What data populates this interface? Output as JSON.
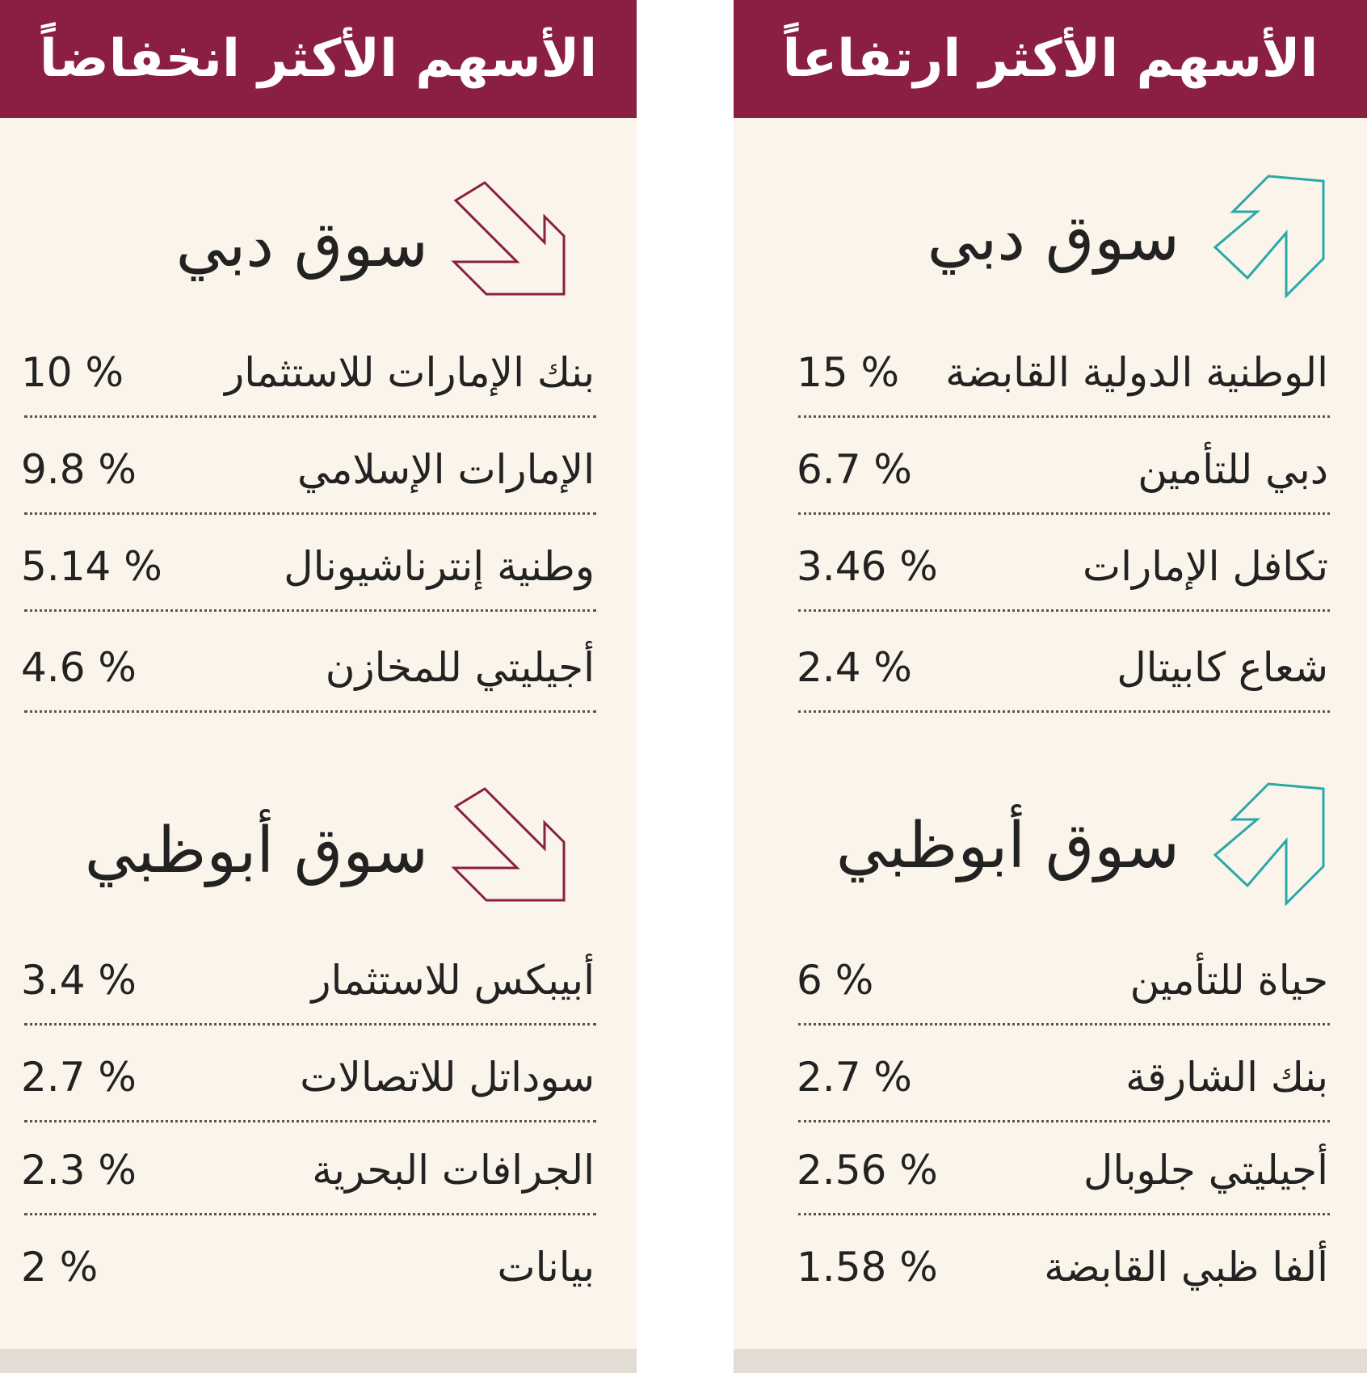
{
  "colors": {
    "header": "#8a1f41",
    "up_arrow": "#2aa7a9",
    "down_arrow": "#8a1f41",
    "background": "#faf4ea"
  },
  "gainers": {
    "title": "الأسهم الأكثر ارتفاعاً",
    "dubai": {
      "market": "سوق دبي",
      "icon": "arrow-up-right-icon",
      "rows": [
        {
          "name": "الوطنية الدولية القابضة",
          "value": "15 %"
        },
        {
          "name": "دبي للتأمين",
          "value": "6.7 %"
        },
        {
          "name": "تكافل الإمارات",
          "value": "3.46 %"
        },
        {
          "name": "شعاع كابيتال",
          "value": "2.4 %"
        }
      ]
    },
    "abudhabi": {
      "market": "سوق أبوظبي",
      "icon": "arrow-up-right-icon",
      "rows": [
        {
          "name": "حياة للتأمين",
          "value": "6 %"
        },
        {
          "name": "بنك الشارقة",
          "value": "2.7 %"
        },
        {
          "name": "أجيليتي جلوبال",
          "value": "2.56 %"
        },
        {
          "name": "ألفا ظبي القابضة",
          "value": "1.58 %"
        }
      ]
    }
  },
  "losers": {
    "title": "الأسهم الأكثر انخفاضاً",
    "dubai": {
      "market": "سوق دبي",
      "icon": "arrow-down-right-icon",
      "rows": [
        {
          "name": "بنك الإمارات للاستثمار",
          "value": "10 %"
        },
        {
          "name": "الإمارات الإسلامي",
          "value": "9.8 %"
        },
        {
          "name": "وطنية إنترناشيونال",
          "value": "5.14 %"
        },
        {
          "name": "أجيليتي للمخازن",
          "value": "4.6 %"
        }
      ]
    },
    "abudhabi": {
      "market": "سوق أبوظبي",
      "icon": "arrow-down-right-icon",
      "rows": [
        {
          "name": "أبيبكس للاستثمار",
          "value": "3.4 %"
        },
        {
          "name": "سوداتل للاتصالات",
          "value": "2.7 %"
        },
        {
          "name": "الجرافات البحرية",
          "value": "2.3 %"
        },
        {
          "name": "بيانات",
          "value": "2 %"
        }
      ]
    }
  }
}
